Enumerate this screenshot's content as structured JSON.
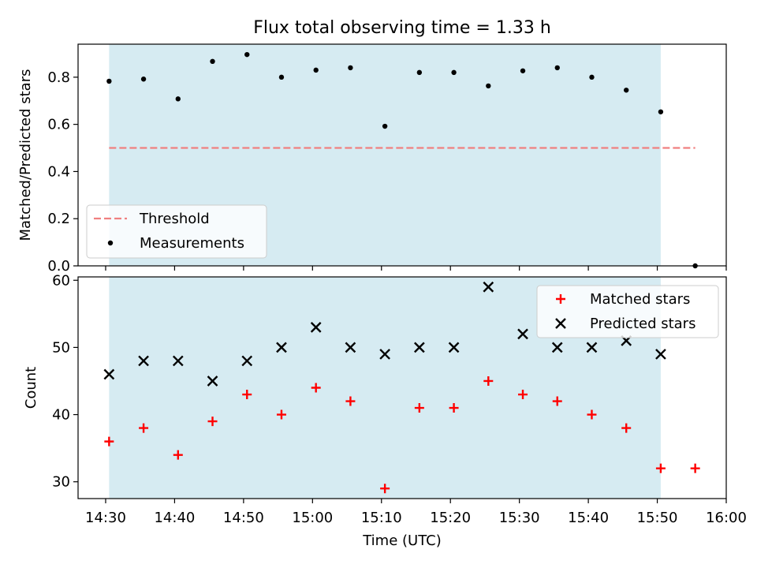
{
  "figure": {
    "title": "Flux total observing time = 1.33 h"
  },
  "chart_data": [
    {
      "type": "scatter",
      "title": "Flux total observing time = 1.33 h",
      "xlabel": "",
      "ylabel": "Matched/Predicted stars",
      "x_tick_labels": [
        "14:30",
        "14:40",
        "14:50",
        "15:00",
        "15:10",
        "15:20",
        "15:30",
        "15:40",
        "15:50",
        "16:00"
      ],
      "x_ticks_min": [
        872,
        882,
        892,
        902,
        912,
        922,
        932,
        942,
        952,
        962
      ],
      "xlim_min": [
        868,
        962
      ],
      "ylim": [
        0,
        0.94
      ],
      "y_ticks": [
        0.0,
        0.2,
        0.4,
        0.6,
        0.8
      ],
      "y_tick_labels": [
        "0.0",
        "0.2",
        "0.4",
        "0.6",
        "0.8"
      ],
      "shaded_span_min": [
        872.5,
        952.5
      ],
      "legend_position": "lower-left",
      "series": [
        {
          "name": "Threshold",
          "style": "dashed-line",
          "color": "#f08080",
          "x_min": [
            872.5,
            957.5
          ],
          "y": [
            0.5,
            0.5
          ]
        },
        {
          "name": "Measurements",
          "style": "dot",
          "color": "#000000",
          "x_min": [
            872.5,
            877.5,
            882.5,
            887.5,
            892.5,
            897.5,
            902.5,
            907.5,
            912.5,
            917.5,
            922.5,
            927.5,
            932.5,
            937.5,
            942.5,
            947.5,
            952.5,
            957.5
          ],
          "y": [
            0.783,
            0.792,
            0.708,
            0.867,
            0.896,
            0.8,
            0.83,
            0.84,
            0.592,
            0.82,
            0.82,
            0.763,
            0.827,
            0.84,
            0.8,
            0.745,
            0.653,
            0.0
          ]
        }
      ]
    },
    {
      "type": "scatter",
      "title": "",
      "xlabel": "Time (UTC)",
      "ylabel": "Count",
      "x_tick_labels": [
        "14:30",
        "14:40",
        "14:50",
        "15:00",
        "15:10",
        "15:20",
        "15:30",
        "15:40",
        "15:50",
        "16:00"
      ],
      "x_ticks_min": [
        872,
        882,
        892,
        902,
        912,
        922,
        932,
        942,
        952,
        962
      ],
      "xlim_min": [
        868,
        962
      ],
      "ylim": [
        27.5,
        60.5
      ],
      "y_ticks": [
        30,
        40,
        50,
        60
      ],
      "y_tick_labels": [
        "30",
        "40",
        "50",
        "60"
      ],
      "shaded_span_min": [
        872.5,
        952.5
      ],
      "legend_position": "top-right",
      "series": [
        {
          "name": "Matched stars",
          "style": "plus",
          "color": "#ff0000",
          "x_min": [
            872.5,
            877.5,
            882.5,
            887.5,
            892.5,
            897.5,
            902.5,
            907.5,
            912.5,
            917.5,
            922.5,
            927.5,
            932.5,
            937.5,
            942.5,
            947.5,
            952.5,
            957.5
          ],
          "y": [
            36,
            38,
            34,
            39,
            43,
            40,
            44,
            42,
            29,
            41,
            41,
            45,
            43,
            42,
            40,
            38,
            32,
            32
          ]
        },
        {
          "name": "Predicted stars",
          "style": "cross",
          "color": "#000000",
          "x_min": [
            872.5,
            877.5,
            882.5,
            887.5,
            892.5,
            897.5,
            902.5,
            907.5,
            912.5,
            917.5,
            922.5,
            927.5,
            932.5,
            937.5,
            942.5,
            947.5,
            952.5
          ],
          "y": [
            46,
            48,
            48,
            45,
            48,
            50,
            53,
            50,
            49,
            50,
            50,
            59,
            52,
            50,
            50,
            51,
            49
          ]
        }
      ]
    }
  ],
  "colors": {
    "shade": "#add8e6",
    "threshold": "#f08080",
    "matched": "#ff0000",
    "predicted": "#000000"
  }
}
